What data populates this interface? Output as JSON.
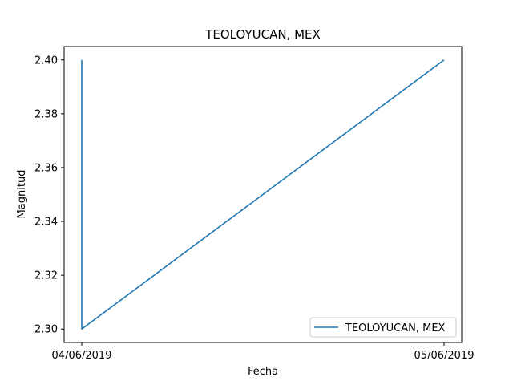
{
  "chart_data": {
    "type": "line",
    "title": "TEOLOYUCAN, MEX",
    "xlabel": "Fecha",
    "ylabel": "Magnitud",
    "x_ticks": [
      "04/06/2019",
      "05/06/2019"
    ],
    "y_ticks": [
      "2.30",
      "2.32",
      "2.34",
      "2.36",
      "2.38",
      "2.40"
    ],
    "ylim": [
      2.295,
      2.405
    ],
    "xlim": [
      "04/06/2019",
      "05/06/2019"
    ],
    "grid": false,
    "legend_position": "lower-right",
    "series": [
      {
        "name": "TEOLOYUCAN, MEX",
        "color": "#1f77b4",
        "points": [
          {
            "x": "04/06/2019",
            "y": 2.4
          },
          {
            "x": "04/06/2019",
            "y": 2.3
          },
          {
            "x": "05/06/2019",
            "y": 2.4
          }
        ]
      }
    ]
  }
}
